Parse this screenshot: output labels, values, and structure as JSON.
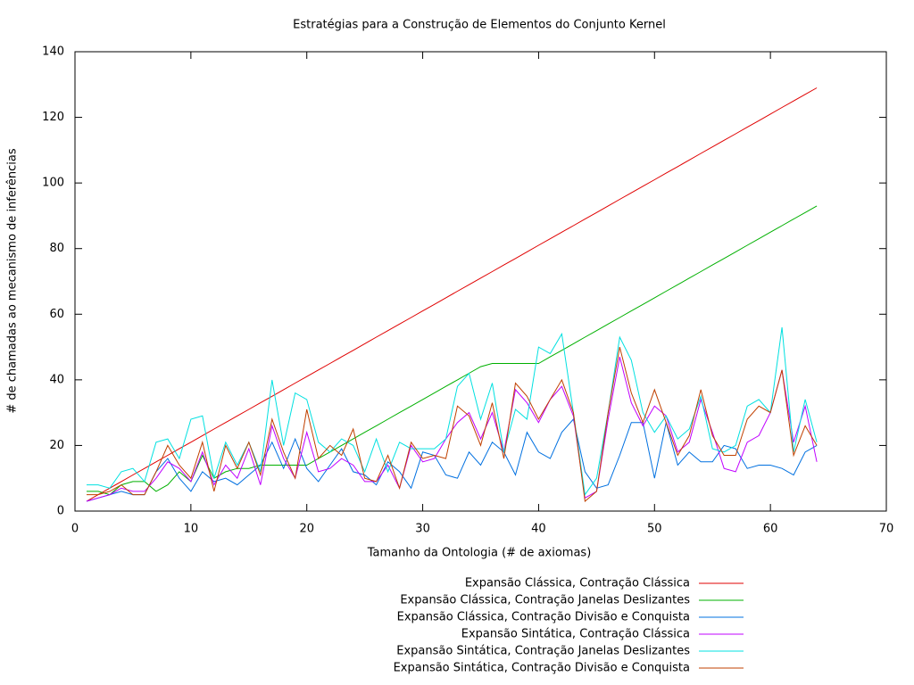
{
  "chart_data": {
    "type": "line",
    "title": "Estratégias para a Construção de Elementos do Conjunto Kernel",
    "xlabel": "Tamanho da Ontologia (# de axiomas)",
    "ylabel": "# de chamadas ao mecanismo de inferências",
    "xlim": [
      0,
      70
    ],
    "ylim": [
      0,
      140
    ],
    "xticks": [
      0,
      10,
      20,
      30,
      40,
      50,
      60,
      70
    ],
    "yticks": [
      0,
      20,
      40,
      60,
      80,
      100,
      120,
      140
    ],
    "legend": "bottom",
    "x": [
      1,
      2,
      3,
      4,
      5,
      6,
      7,
      8,
      9,
      10,
      11,
      12,
      13,
      14,
      15,
      16,
      17,
      18,
      19,
      20,
      21,
      22,
      23,
      24,
      25,
      26,
      27,
      28,
      29,
      30,
      31,
      32,
      33,
      34,
      35,
      36,
      37,
      38,
      39,
      40,
      41,
      42,
      43,
      44,
      45,
      46,
      47,
      48,
      49,
      50,
      51,
      52,
      53,
      54,
      55,
      56,
      57,
      58,
      59,
      60,
      61,
      62,
      63,
      64
    ],
    "series": [
      {
        "name": "Expansão Clássica, Contração Clássica",
        "color": "#e00000",
        "values": [
          3,
          5,
          7,
          9,
          11,
          13,
          15,
          17,
          19,
          21,
          23,
          25,
          27,
          29,
          31,
          33,
          35,
          37,
          39,
          41,
          43,
          45,
          47,
          49,
          51,
          53,
          55,
          57,
          59,
          61,
          63,
          65,
          67,
          69,
          71,
          73,
          75,
          77,
          79,
          81,
          83,
          85,
          87,
          89,
          91,
          93,
          95,
          97,
          99,
          101,
          103,
          105,
          107,
          109,
          111,
          113,
          115,
          117,
          119,
          121,
          123,
          125,
          127,
          129
        ]
      },
      {
        "name": "Expansão Clássica, Contração Janelas Deslizantes",
        "color": "#00b000",
        "values": [
          6,
          6,
          5,
          8,
          9,
          9,
          6,
          8,
          12,
          9,
          17,
          10,
          12,
          13,
          13,
          14,
          14,
          14,
          14,
          14,
          16,
          18,
          20,
          22,
          24,
          26,
          28,
          30,
          32,
          34,
          36,
          38,
          40,
          42,
          44,
          45,
          45,
          45,
          45,
          45,
          47,
          49,
          51,
          53,
          55,
          57,
          59,
          61,
          63,
          65,
          67,
          69,
          71,
          73,
          75,
          77,
          79,
          81,
          83,
          85,
          87,
          89,
          91,
          93
        ]
      },
      {
        "name": "Expansão Clássica, Contração Divisão e Conquista",
        "color": "#0070e0",
        "values": [
          3,
          4,
          5,
          6,
          5,
          5,
          12,
          16,
          10,
          6,
          12,
          9,
          10,
          8,
          11,
          14,
          21,
          13,
          22,
          13,
          9,
          14,
          19,
          12,
          11,
          8,
          15,
          12,
          7,
          18,
          17,
          11,
          10,
          18,
          14,
          21,
          18,
          11,
          24,
          18,
          16,
          24,
          28,
          12,
          7,
          8,
          17,
          27,
          27,
          10,
          27,
          14,
          18,
          15,
          15,
          20,
          19,
          13,
          14,
          14,
          13,
          11,
          18,
          20
        ]
      },
      {
        "name": "Expansão Sintática, Contração Clássica",
        "color": "#c000ff",
        "values": [
          3,
          4,
          5,
          7,
          6,
          6,
          10,
          15,
          13,
          9,
          18,
          8,
          14,
          10,
          19,
          8,
          26,
          16,
          10,
          24,
          12,
          13,
          16,
          14,
          9,
          9,
          14,
          7,
          20,
          15,
          16,
          22,
          27,
          30,
          22,
          30,
          18,
          37,
          33,
          27,
          34,
          38,
          29,
          4,
          6,
          28,
          47,
          33,
          26,
          32,
          29,
          18,
          21,
          34,
          24,
          13,
          12,
          21,
          23,
          30,
          43,
          21,
          32,
          15
        ]
      },
      {
        "name": "Expansão Sintática, Contração Janelas Deslizantes",
        "color": "#00e0e0",
        "values": [
          8,
          8,
          7,
          12,
          13,
          9,
          21,
          22,
          16,
          28,
          29,
          10,
          21,
          14,
          21,
          12,
          40,
          20,
          36,
          34,
          21,
          18,
          22,
          20,
          12,
          22,
          12,
          21,
          19,
          19,
          19,
          22,
          38,
          42,
          28,
          39,
          18,
          31,
          28,
          50,
          48,
          54,
          30,
          5,
          10,
          30,
          53,
          46,
          30,
          24,
          29,
          22,
          25,
          35,
          19,
          18,
          20,
          32,
          34,
          30,
          56,
          18,
          34,
          21
        ]
      },
      {
        "name": "Expansão Sintática, Contração Divisão e Conquista",
        "color": "#c04000",
        "values": [
          5,
          5,
          6,
          8,
          5,
          5,
          12,
          20,
          14,
          10,
          21,
          6,
          20,
          13,
          21,
          11,
          28,
          18,
          10,
          31,
          16,
          20,
          17,
          25,
          10,
          9,
          17,
          7,
          21,
          16,
          17,
          16,
          32,
          29,
          20,
          33,
          16,
          39,
          35,
          28,
          34,
          40,
          30,
          3,
          6,
          30,
          50,
          36,
          27,
          37,
          27,
          17,
          23,
          37,
          23,
          17,
          17,
          28,
          32,
          30,
          43,
          17,
          26,
          20
        ]
      }
    ]
  }
}
